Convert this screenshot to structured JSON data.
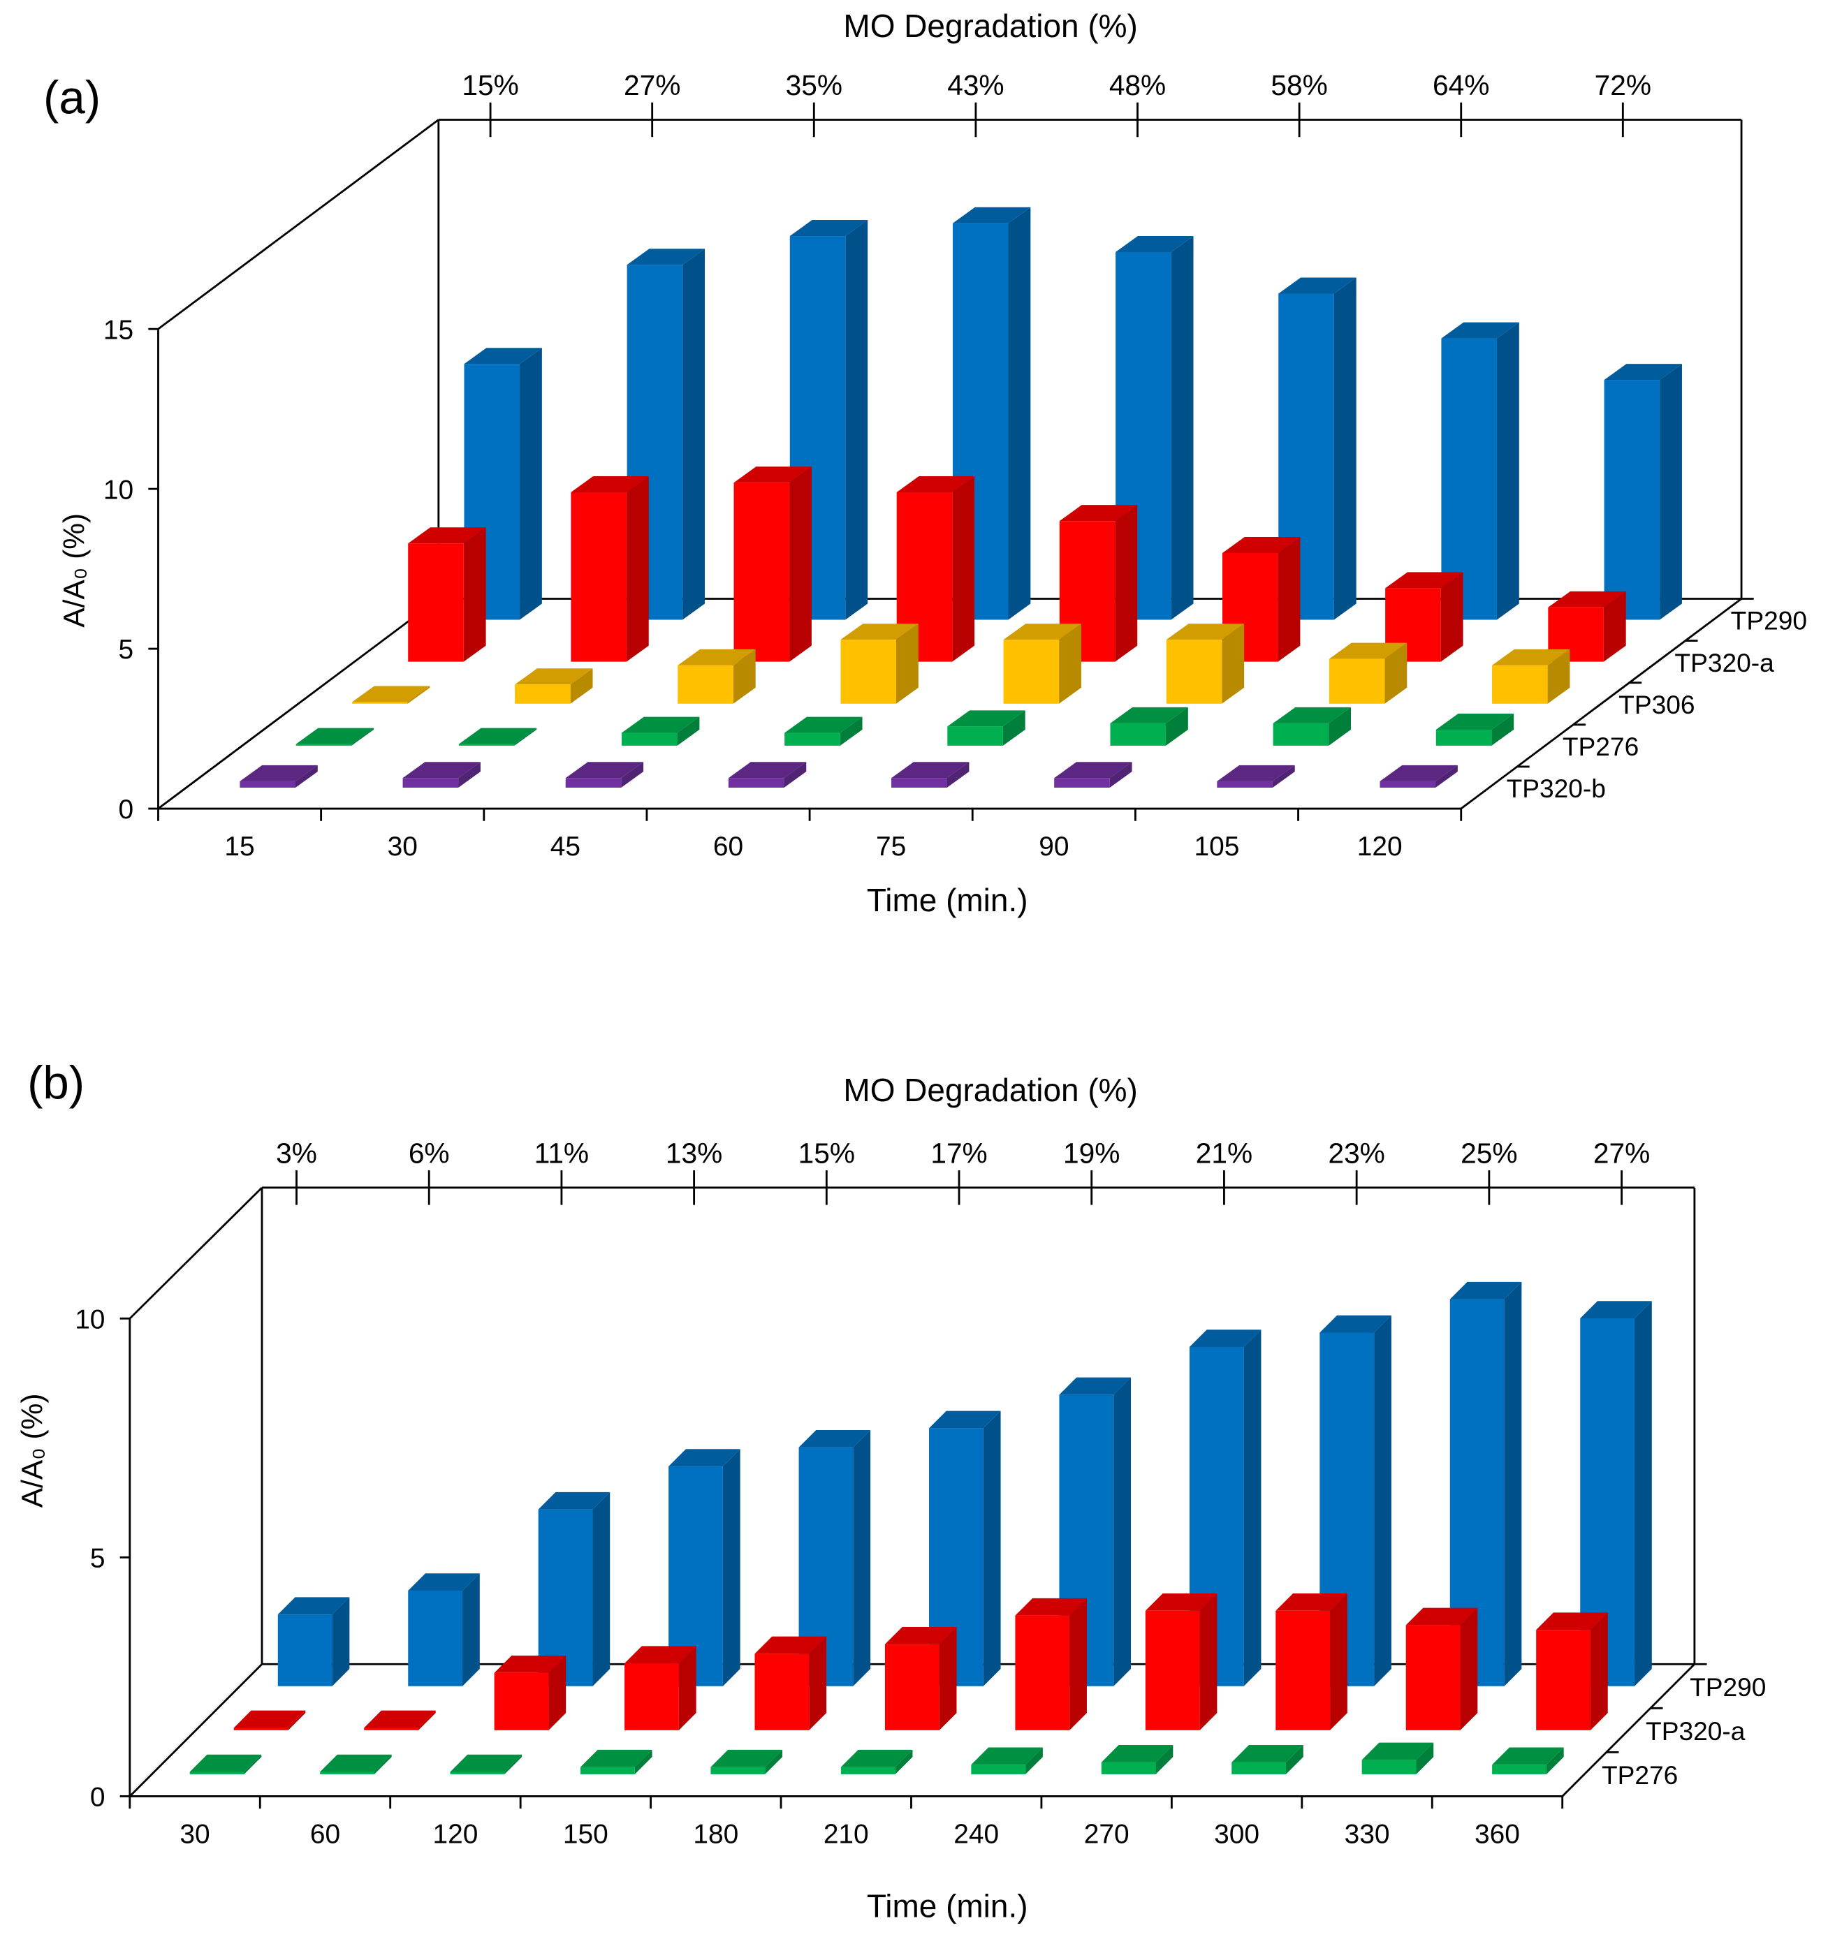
{
  "chart_data": [
    {
      "type": "bar",
      "panel_label": "(a)",
      "title": "MO Degradation (%)",
      "top_tick_labels": [
        "15%",
        "27%",
        "35%",
        "43%",
        "48%",
        "58%",
        "64%",
        "72%"
      ],
      "xlabel": "Time (min.)",
      "ylabel": "A/A₀ (%)",
      "categories": [
        "15",
        "30",
        "45",
        "60",
        "75",
        "90",
        "105",
        "120"
      ],
      "yticks": [
        0,
        5,
        10,
        15
      ],
      "ylim": [
        0,
        15
      ],
      "series": [
        {
          "name": "TP320-b",
          "color": "#7030A0",
          "values": [
            0.2,
            0.3,
            0.3,
            0.3,
            0.3,
            0.3,
            0.2,
            0.2
          ]
        },
        {
          "name": "TP276",
          "color": "#00B050",
          "values": [
            0.05,
            0.05,
            0.4,
            0.4,
            0.6,
            0.7,
            0.7,
            0.5
          ]
        },
        {
          "name": "TP306",
          "color": "#FFC000",
          "values": [
            0.05,
            0.6,
            1.2,
            2.0,
            2.0,
            2.0,
            1.4,
            1.2
          ]
        },
        {
          "name": "TP320-a",
          "color": "#FF0000",
          "values": [
            3.7,
            5.3,
            5.6,
            5.3,
            4.4,
            3.4,
            2.3,
            1.7
          ]
        },
        {
          "name": "TP290",
          "color": "#0070C0",
          "values": [
            8.0,
            11.1,
            12.0,
            12.4,
            11.5,
            10.2,
            8.8,
            7.5
          ]
        }
      ]
    },
    {
      "type": "bar",
      "panel_label": "(b)",
      "title": "MO Degradation (%)",
      "top_tick_labels": [
        "3%",
        "6%",
        "11%",
        "13%",
        "15%",
        "17%",
        "19%",
        "21%",
        "23%",
        "25%",
        "27%"
      ],
      "xlabel": "Time (min.)",
      "ylabel": "A/A₀ (%)",
      "categories": [
        "30",
        "60",
        "120",
        "150",
        "180",
        "210",
        "240",
        "270",
        "300",
        "330",
        "360"
      ],
      "yticks": [
        0,
        5,
        10
      ],
      "ylim": [
        0,
        10
      ],
      "series": [
        {
          "name": "TP276",
          "color": "#00B050",
          "values": [
            0.05,
            0.05,
            0.05,
            0.15,
            0.15,
            0.15,
            0.2,
            0.25,
            0.25,
            0.3,
            0.2
          ]
        },
        {
          "name": "TP320-a",
          "color": "#FF0000",
          "values": [
            0.05,
            0.05,
            1.2,
            1.4,
            1.6,
            1.8,
            2.4,
            2.5,
            2.5,
            2.2,
            2.1
          ]
        },
        {
          "name": "TP290",
          "color": "#0070C0",
          "values": [
            1.5,
            2.0,
            3.7,
            4.6,
            5.0,
            5.4,
            6.1,
            7.1,
            7.4,
            8.1,
            7.7
          ]
        }
      ]
    }
  ]
}
